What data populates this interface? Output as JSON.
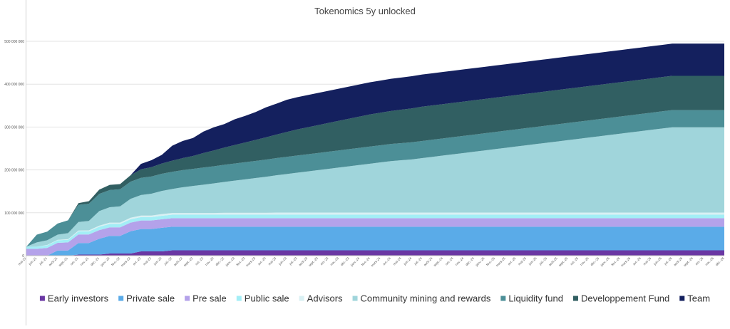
{
  "chart_data": {
    "type": "area",
    "stacked": true,
    "title": "Tokenomics 5y unlocked",
    "xlabel": "",
    "ylabel": "",
    "ylim": [
      0,
      500000000
    ],
    "yticks": [
      0,
      100000000,
      200000000,
      300000000,
      400000000,
      500000000
    ],
    "ytick_labels": [
      "0",
      "100 000 000",
      "200 000 000",
      "300 000 000",
      "400 000 000",
      "500 000 000"
    ],
    "grid": true,
    "legend_position": "bottom",
    "x": [
      "mai-21",
      "juin-21",
      "juil.-21",
      "août-21",
      "sept.-21",
      "oct.-21",
      "nov.-21",
      "déc.-21",
      "janv.-22",
      "févr.-22",
      "mars-22",
      "avr.-22",
      "mai-22",
      "juin-22",
      "juil.-22",
      "août-22",
      "sept.-22",
      "oct.-22",
      "nov.-22",
      "déc.-22",
      "janv.-23",
      "févr.-23",
      "mars-23",
      "avr.-23",
      "mai-23",
      "juin-23",
      "juil.-23",
      "août-23",
      "sept.-23",
      "oct.-23",
      "nov.-23",
      "déc.-23",
      "janv.-24",
      "févr.-24",
      "mars-24",
      "avr.-24",
      "mai-24",
      "juin-24",
      "juil.-24",
      "août-24",
      "sept.-24",
      "oct.-24",
      "nov.-24",
      "déc.-24",
      "janv.-25",
      "févr.-25",
      "mars-25",
      "avr.-25",
      "mai-25",
      "juin-25",
      "juil.-25",
      "août-25",
      "sept.-25",
      "oct.-25",
      "nov.-25",
      "déc.-25",
      "janv.-26",
      "févr.-26",
      "mars-26",
      "avr.-26",
      "mai-26",
      "juin-26",
      "juil.-26",
      "août-26",
      "sept.-26",
      "oct.-26",
      "nov.-26",
      "déc.-26"
    ],
    "x_labels_shown": [
      "mai-21",
      "juin-21",
      "juil.-21",
      "août-21",
      "sept.-21",
      "oct.-21",
      "nov.-21",
      "déc.-21",
      "janv.-22",
      "févr.-22",
      "mars-22",
      "avr.-22",
      "mai-22",
      "juin-22",
      "juil.-22",
      "août-22",
      "sept.-22",
      "oct.-22",
      "nov.-22",
      "déc.-22",
      "janv.-23",
      "févr.-23",
      "mars-23",
      "avr.-23",
      "mai-23",
      "juin-23",
      "juil.-23",
      "août-23",
      "sept.-23",
      "oct.-23",
      "nov.-23",
      "déc.-23",
      "janv.-24",
      "févr.-24",
      "mars-24",
      "avr.-24",
      "mai-24",
      "juin-24",
      "juil.-24",
      "août-24",
      "sept.-24",
      "oct.-24",
      "nov.-24",
      "déc.-24",
      "janv.-25",
      "févr.-25",
      "mars-25",
      "avr.-25",
      "mai-25",
      "juin-25",
      "juil.-25",
      "août-25",
      "sept.-25",
      "oct.-25",
      "nov.-25",
      "déc.-25",
      "janv.-26",
      "févr.-26",
      "mars-26",
      "avr.-26",
      "mai-26",
      "juin-26",
      "juil.-26",
      "août-26",
      "sept.-26",
      "oct.-26",
      "nov.-26",
      "déc.-26"
    ],
    "series": [
      {
        "name": "Early investors",
        "color": "#6a37a3",
        "values": [
          0,
          0,
          0,
          0,
          0,
          2500000,
          2500000,
          2500000,
          5000000,
          5000000,
          5000000,
          10000000,
          10000000,
          10000000,
          12500000,
          12500000,
          12500000,
          12500000,
          12500000,
          12500000,
          12500000,
          12500000,
          12500000,
          12500000,
          12500000,
          12500000,
          12500000,
          12500000,
          12500000,
          12500000,
          12500000,
          12500000,
          12500000,
          12500000,
          12500000,
          12500000,
          12500000,
          12500000,
          12500000,
          12500000,
          12500000,
          12500000,
          12500000,
          12500000,
          12500000,
          12500000,
          12500000,
          12500000,
          12500000,
          12500000,
          12500000,
          12500000,
          12500000,
          12500000,
          12500000,
          12500000,
          12500000,
          12500000,
          12500000,
          12500000,
          12500000,
          12500000,
          12500000,
          12500000,
          12500000,
          12500000,
          12500000,
          12500000
        ]
      },
      {
        "name": "Private sale",
        "color": "#5aabe8",
        "values": [
          0,
          0,
          0,
          12000000,
          12000000,
          27000000,
          27000000,
          37000000,
          41000000,
          41000000,
          52000000,
          52000000,
          52000000,
          55000000,
          55000000,
          55000000,
          55000000,
          55000000,
          55000000,
          55000000,
          55000000,
          55000000,
          55000000,
          55000000,
          55000000,
          55000000,
          55000000,
          55000000,
          55000000,
          55000000,
          55000000,
          55000000,
          55000000,
          55000000,
          55000000,
          55000000,
          55000000,
          55000000,
          55000000,
          55000000,
          55000000,
          55000000,
          55000000,
          55000000,
          55000000,
          55000000,
          55000000,
          55000000,
          55000000,
          55000000,
          55000000,
          55000000,
          55000000,
          55000000,
          55000000,
          55000000,
          55000000,
          55000000,
          55000000,
          55000000,
          55000000,
          55000000,
          55000000,
          55000000,
          55000000,
          55000000,
          55000000,
          55000000
        ]
      },
      {
        "name": "Pre sale",
        "color": "#b4a2ea",
        "values": [
          16000000,
          16000000,
          18000000,
          18000000,
          19000000,
          20000000,
          20000000,
          20000000,
          20000000,
          20000000,
          20000000,
          20000000,
          20000000,
          20000000,
          20000000,
          20000000,
          20000000,
          20000000,
          20000000,
          20000000,
          20000000,
          20000000,
          20000000,
          20000000,
          20000000,
          20000000,
          20000000,
          20000000,
          20000000,
          20000000,
          20000000,
          20000000,
          20000000,
          20000000,
          20000000,
          20000000,
          20000000,
          20000000,
          20000000,
          20000000,
          20000000,
          20000000,
          20000000,
          20000000,
          20000000,
          20000000,
          20000000,
          20000000,
          20000000,
          20000000,
          20000000,
          20000000,
          20000000,
          20000000,
          20000000,
          20000000,
          20000000,
          20000000,
          20000000,
          20000000,
          20000000,
          20000000,
          20000000,
          20000000,
          20000000,
          20000000,
          20000000,
          20000000
        ]
      },
      {
        "name": "Public sale",
        "color": "#a3eef6",
        "values": [
          5000000,
          5000000,
          6000000,
          6000000,
          6000000,
          7000000,
          7000000,
          8000000,
          8000000,
          8000000,
          8000000,
          8000000,
          8000000,
          8000000,
          8000000,
          8000000,
          8000000,
          8000000,
          8000000,
          8000000,
          8000000,
          8000000,
          8000000,
          8000000,
          8000000,
          8000000,
          8000000,
          8000000,
          8000000,
          8000000,
          8000000,
          8000000,
          8000000,
          8000000,
          8000000,
          8000000,
          8000000,
          8000000,
          8000000,
          8000000,
          8000000,
          8000000,
          8000000,
          8000000,
          8000000,
          8000000,
          8000000,
          8000000,
          8000000,
          8000000,
          8000000,
          8000000,
          8000000,
          8000000,
          8000000,
          8000000,
          8000000,
          8000000,
          8000000,
          8000000,
          8000000,
          8000000,
          8000000,
          8000000,
          8000000,
          8000000,
          8000000,
          8000000
        ]
      },
      {
        "name": "Advisors",
        "color": "#d9f0f3",
        "values": [
          0,
          0,
          1000000,
          1000000,
          1500000,
          2000000,
          2500000,
          2500000,
          3000000,
          3000000,
          3500000,
          3500000,
          3500000,
          4000000,
          4000000,
          4000000,
          4000000,
          4000000,
          4000000,
          4500000,
          4500000,
          4500000,
          4500000,
          4500000,
          5000000,
          5000000,
          5000000,
          5000000,
          5000000,
          5000000,
          5000000,
          5000000,
          5000000,
          5000000,
          5000000,
          5000000,
          5000000,
          5000000,
          5000000,
          5000000,
          5000000,
          5000000,
          5000000,
          5000000,
          5000000,
          5000000,
          5000000,
          5000000,
          5000000,
          5000000,
          5000000,
          5000000,
          5000000,
          5000000,
          5000000,
          5000000,
          5000000,
          5000000,
          5000000,
          5000000,
          5000000,
          5000000,
          5000000,
          5000000,
          5000000,
          5000000,
          5000000,
          5000000
        ]
      },
      {
        "name": "Community mining and rewards",
        "color": "#a0d5db",
        "values": [
          0,
          10000000,
          11000000,
          12000000,
          14000000,
          20000000,
          22000000,
          34000000,
          36000000,
          38000000,
          44000000,
          48000000,
          51000000,
          54000000,
          56000000,
          60000000,
          63000000,
          66000000,
          69000000,
          72000000,
          75000000,
          78000000,
          81000000,
          84000000,
          87000000,
          90000000,
          93000000,
          96000000,
          99000000,
          102000000,
          105000000,
          108000000,
          111000000,
          114000000,
          117000000,
          120000000,
          122000000,
          124000000,
          127000000,
          130000000,
          133000000,
          136000000,
          139000000,
          142000000,
          145000000,
          148000000,
          151000000,
          154000000,
          157000000,
          160000000,
          163000000,
          166000000,
          169000000,
          172000000,
          175000000,
          178000000,
          181000000,
          184000000,
          187000000,
          190000000,
          193000000,
          196000000,
          199000000,
          199000000,
          199000000,
          199000000,
          199000000,
          199000000
        ]
      },
      {
        "name": "Liquidity fund",
        "color": "#4c8f97",
        "values": [
          0,
          18000000,
          20000000,
          26000000,
          30000000,
          40000000,
          40000000,
          40000000,
          40000000,
          40000000,
          40000000,
          40000000,
          40000000,
          40000000,
          40000000,
          40000000,
          40000000,
          40000000,
          40000000,
          40000000,
          40000000,
          40000000,
          40000000,
          40000000,
          40000000,
          40000000,
          40000000,
          40000000,
          40000000,
          40000000,
          40000000,
          40000000,
          40000000,
          40000000,
          40000000,
          40000000,
          40000000,
          40000000,
          40000000,
          40000000,
          40000000,
          40000000,
          40000000,
          40000000,
          40000000,
          40000000,
          40000000,
          40000000,
          40000000,
          40000000,
          40000000,
          40000000,
          40000000,
          40000000,
          40000000,
          40000000,
          40000000,
          40000000,
          40000000,
          40000000,
          40000000,
          40000000,
          40000000,
          40000000,
          40000000,
          40000000,
          40000000,
          40000000
        ]
      },
      {
        "name": "Developpement Fund",
        "color": "#315f62",
        "values": [
          0,
          0,
          0,
          0,
          0,
          4000000,
          6000000,
          10000000,
          12000000,
          12000000,
          15000000,
          20000000,
          22000000,
          24000000,
          26000000,
          28000000,
          30000000,
          34000000,
          37000000,
          40000000,
          43000000,
          46000000,
          49000000,
          52000000,
          55000000,
          58000000,
          61000000,
          63000000,
          65000000,
          67000000,
          69000000,
          71000000,
          73000000,
          75000000,
          76000000,
          77000000,
          78000000,
          79000000,
          80000000,
          80000000,
          80000000,
          80000000,
          80000000,
          80000000,
          80000000,
          80000000,
          80000000,
          80000000,
          80000000,
          80000000,
          80000000,
          80000000,
          80000000,
          80000000,
          80000000,
          80000000,
          80000000,
          80000000,
          80000000,
          80000000,
          80000000,
          80000000,
          80000000,
          80000000,
          80000000,
          80000000,
          80000000,
          80000000
        ]
      },
      {
        "name": "Team",
        "color": "#14205e",
        "values": [
          0,
          0,
          0,
          0,
          0,
          0,
          0,
          0,
          0,
          0,
          0,
          12500000,
          16000000,
          20000000,
          35000000,
          40000000,
          42000000,
          50000000,
          54000000,
          55000000,
          60000000,
          62000000,
          65000000,
          70000000,
          72000000,
          75000000,
          75000000,
          75000000,
          75000000,
          75000000,
          75000000,
          75000000,
          75000000,
          75000000,
          75000000,
          75000000,
          75000000,
          75000000,
          75000000,
          75000000,
          75000000,
          75000000,
          75000000,
          75000000,
          75000000,
          75000000,
          75000000,
          75000000,
          75000000,
          75000000,
          75000000,
          75000000,
          75000000,
          75000000,
          75000000,
          75000000,
          75000000,
          75000000,
          75000000,
          75000000,
          75000000,
          75000000,
          75000000,
          75000000,
          75000000,
          75000000,
          75000000,
          75000000
        ]
      }
    ]
  }
}
